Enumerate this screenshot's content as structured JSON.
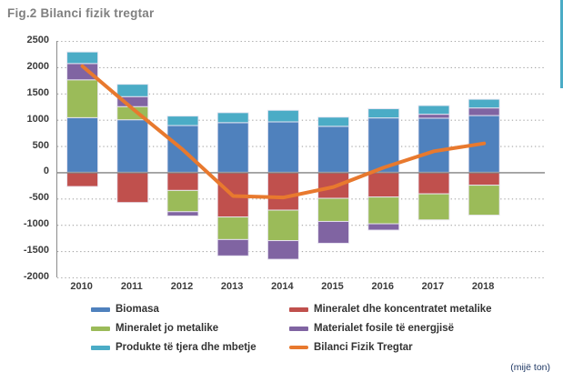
{
  "title": "Fig.2 Bilanci fizik tregtar",
  "unit_note": "(mijë ton)",
  "accent_edge_color": "#4BACC6",
  "axis_text_color": "#3b3b3b",
  "chart_data": {
    "type": "bar",
    "subtype": "stacked-bars-with-line-overlay",
    "title": "Fig.2 Bilanci fizik tregtar",
    "xlabel": "",
    "ylabel": "",
    "unit": "mijë ton",
    "categories": [
      "2010",
      "2011",
      "2012",
      "2013",
      "2014",
      "2015",
      "2016",
      "2017",
      "2018"
    ],
    "ylim": [
      -2000,
      2500
    ],
    "yticks": [
      2500,
      2000,
      1500,
      1000,
      500,
      0,
      -500,
      -1000,
      -1500,
      -2000
    ],
    "grid": "horizontal-dotted",
    "zero_line": true,
    "legend_position": "bottom",
    "series": [
      {
        "name": "Biomasa",
        "type": "bar",
        "color": "#4F81BD",
        "values": [
          1040,
          1000,
          890,
          945,
          960,
          875,
          1035,
          1030,
          1080
        ]
      },
      {
        "name": "Mineralet dhe koncentratet metalike",
        "type": "bar",
        "color": "#C0504D",
        "values": [
          -270,
          -575,
          -345,
          -850,
          -720,
          -495,
          -470,
          -410,
          -245
        ]
      },
      {
        "name": "Mineralet jo metalike",
        "type": "bar",
        "color": "#9BBB59",
        "values": [
          720,
          250,
          -405,
          -430,
          -580,
          -440,
          -510,
          -495,
          -570
        ]
      },
      {
        "name": "Materialet  fosile të energjisë",
        "type": "bar",
        "color": "#8064A2",
        "values": [
          310,
          190,
          -80,
          -310,
          -355,
          -415,
          -120,
          75,
          145
        ]
      },
      {
        "name": "Produkte të tjera dhe mbetje",
        "type": "bar",
        "color": "#4BACC6",
        "values": [
          220,
          235,
          180,
          190,
          220,
          175,
          175,
          165,
          165
        ]
      },
      {
        "name": "Bilanci Fizik Tregtar",
        "type": "line",
        "color": "#E8792E",
        "values": [
          2020,
          1210,
          430,
          -450,
          -480,
          -280,
          90,
          400,
          550
        ]
      }
    ]
  },
  "legend": {
    "items": [
      {
        "label": "Biomasa",
        "color": "#4F81BD",
        "shape": "bar"
      },
      {
        "label": "Mineralet dhe koncentratet metalike",
        "color": "#C0504D",
        "shape": "bar"
      },
      {
        "label": "Mineralet jo metalike",
        "color": "#9BBB59",
        "shape": "bar"
      },
      {
        "label": "Materialet  fosile të energjisë",
        "color": "#8064A2",
        "shape": "bar"
      },
      {
        "label": "Produkte të tjera dhe mbetje",
        "color": "#4BACC6",
        "shape": "bar"
      },
      {
        "label": "Bilanci Fizik Tregtar",
        "color": "#E8792E",
        "shape": "line"
      }
    ]
  }
}
